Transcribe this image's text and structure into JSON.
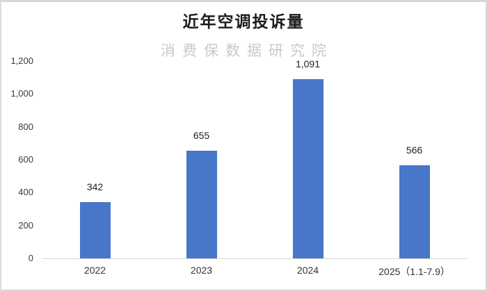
{
  "chart_data": {
    "type": "bar",
    "title": "近年空调投诉量",
    "watermark": "消费保数据研究院",
    "categories": [
      "2022",
      "2023",
      "2024",
      "2025（1.1-7.9）"
    ],
    "values": [
      342,
      655,
      1091,
      566
    ],
    "value_labels": [
      "342",
      "655",
      "1,091",
      "566"
    ],
    "xlabel": "",
    "ylabel": "",
    "ylim": [
      0,
      1200
    ],
    "ytick_interval": 200,
    "ytick_labels": [
      "1,200",
      "1,000",
      "800",
      "600",
      "400",
      "200",
      "0"
    ],
    "grid": false,
    "legend": false,
    "bar_color": "#4876C8",
    "baseline_color": "#d6d6d6",
    "title_color": "#1c1c1c",
    "watermark_color": "#c9c9c9",
    "axis_label_color": "#3a3a3a"
  }
}
